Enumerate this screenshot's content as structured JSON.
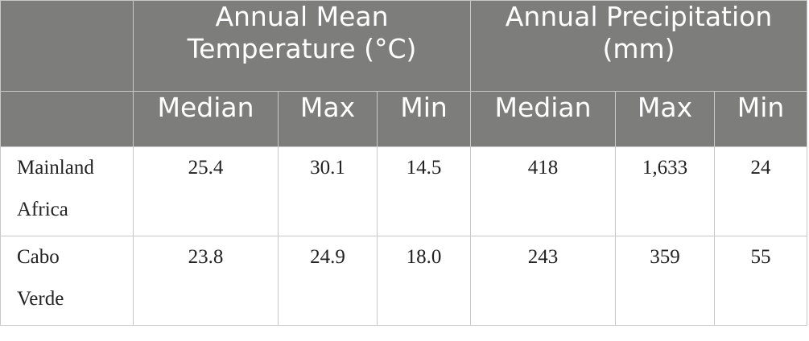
{
  "table": {
    "group_headers": [
      {
        "label": "Annual Mean Temperature (°C)"
      },
      {
        "label": "Annual Precipitation (mm)"
      }
    ],
    "column_headers": [
      "Median",
      "Max",
      "Min",
      "Median",
      "Max",
      "Min"
    ],
    "rows": [
      {
        "label_line1": "Mainland",
        "label_line2": "Africa",
        "values": [
          "25.4",
          "30.1",
          "14.5",
          "418",
          "1,633",
          "24"
        ]
      },
      {
        "label_line1": "Cabo",
        "label_line2": "Verde",
        "values": [
          "23.8",
          "24.9",
          "18.0",
          "243",
          "359",
          "55"
        ]
      }
    ]
  }
}
